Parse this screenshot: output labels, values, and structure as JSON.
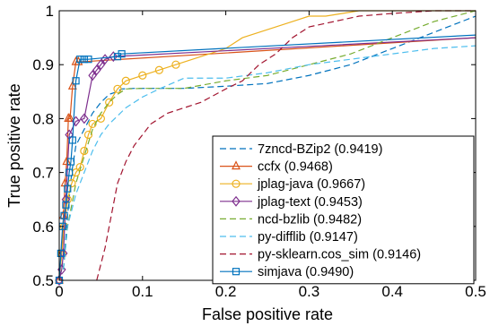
{
  "chart_data": {
    "type": "line",
    "title": "",
    "xlabel": "False positive rate",
    "ylabel": "True positive rate",
    "xlim": [
      0,
      0.5
    ],
    "ylim": [
      0.5,
      1.0
    ],
    "xticks": [
      0,
      0.1,
      0.2,
      0.3,
      0.4,
      0.5
    ],
    "yticks": [
      0.5,
      0.6,
      0.7,
      0.8,
      0.9,
      1.0
    ],
    "xtick_labels": [
      "0",
      "0.1",
      "0.2",
      "0.3",
      "0.4",
      "0.5"
    ],
    "ytick_labels": [
      "0.5",
      "0.6",
      "0.7",
      "0.8",
      "0.9",
      "1"
    ],
    "grid": false,
    "legend_position": "bottom-right",
    "series": [
      {
        "name": "7zncd-BZip2 (0.9419)",
        "color": "#0072bd",
        "dash": "dashed",
        "marker": "none",
        "x": [
          0.005,
          0.01,
          0.015,
          0.02,
          0.03,
          0.04,
          0.05,
          0.06,
          0.07,
          0.075,
          0.09,
          0.12,
          0.15,
          0.2,
          0.25,
          0.3,
          0.35,
          0.4,
          0.45,
          0.5
        ],
        "y": [
          0.52,
          0.62,
          0.7,
          0.75,
          0.78,
          0.81,
          0.83,
          0.845,
          0.85,
          0.855,
          0.856,
          0.856,
          0.856,
          0.86,
          0.865,
          0.88,
          0.9,
          0.93,
          0.96,
          0.99
        ]
      },
      {
        "name": "ccfx (0.9468)",
        "color": "#d95319",
        "dash": "solid",
        "marker": "triangle",
        "x": [
          0.0,
          0.003,
          0.005,
          0.007,
          0.009,
          0.011,
          0.013,
          0.016,
          0.02,
          0.023,
          0.5
        ],
        "y": [
          0.5,
          0.55,
          0.62,
          0.68,
          0.72,
          0.8,
          0.8,
          0.86,
          0.905,
          0.905,
          0.95
        ]
      },
      {
        "name": "jplag-java (0.9667)",
        "color": "#edb120",
        "dash": "solid",
        "marker": "circle",
        "x": [
          0.0,
          0.003,
          0.006,
          0.01,
          0.015,
          0.02,
          0.025,
          0.03,
          0.035,
          0.04,
          0.05,
          0.06,
          0.07,
          0.08,
          0.1,
          0.12,
          0.14,
          0.16,
          0.18,
          0.2,
          0.22,
          0.24,
          0.26,
          0.28,
          0.3,
          0.32,
          0.34,
          0.36,
          0.4,
          0.45,
          0.5
        ],
        "y": [
          0.5,
          0.55,
          0.6,
          0.65,
          0.68,
          0.7,
          0.71,
          0.74,
          0.77,
          0.79,
          0.8,
          0.83,
          0.855,
          0.87,
          0.88,
          0.89,
          0.9,
          0.91,
          0.92,
          0.93,
          0.95,
          0.96,
          0.97,
          0.98,
          0.99,
          0.99,
          0.995,
          1.0,
          1.0,
          1.0,
          1.0
        ]
      },
      {
        "name": "jplag-text (0.9453)",
        "color": "#7e2f8e",
        "dash": "solid",
        "marker": "diamond",
        "x": [
          0.0,
          0.003,
          0.005,
          0.008,
          0.012,
          0.02,
          0.03,
          0.04,
          0.045,
          0.05,
          0.055,
          0.065,
          0.5
        ],
        "y": [
          0.5,
          0.52,
          0.55,
          0.65,
          0.77,
          0.795,
          0.8,
          0.88,
          0.89,
          0.9,
          0.91,
          0.915,
          0.95
        ]
      },
      {
        "name": "ncd-bzlib (0.9482)",
        "color": "#77ac30",
        "dash": "dashed",
        "marker": "none",
        "x": [
          0.005,
          0.01,
          0.02,
          0.03,
          0.04,
          0.05,
          0.06,
          0.07,
          0.08,
          0.1,
          0.15,
          0.2,
          0.25,
          0.3,
          0.35,
          0.4,
          0.45,
          0.5
        ],
        "y": [
          0.52,
          0.6,
          0.68,
          0.73,
          0.78,
          0.81,
          0.83,
          0.845,
          0.855,
          0.856,
          0.856,
          0.87,
          0.88,
          0.9,
          0.92,
          0.95,
          0.98,
          1.0
        ]
      },
      {
        "name": "py-difflib (0.9147)",
        "color": "#4dbeee",
        "dash": "dashed",
        "marker": "none",
        "x": [
          0.005,
          0.01,
          0.02,
          0.03,
          0.04,
          0.05,
          0.06,
          0.08,
          0.1,
          0.12,
          0.15,
          0.2,
          0.25,
          0.3,
          0.35,
          0.4,
          0.45,
          0.5
        ],
        "y": [
          0.52,
          0.6,
          0.66,
          0.7,
          0.74,
          0.77,
          0.79,
          0.82,
          0.84,
          0.855,
          0.875,
          0.875,
          0.885,
          0.9,
          0.91,
          0.92,
          0.93,
          0.935
        ]
      },
      {
        "name": "py-sklearn.cos_sim (0.9146)",
        "color": "#a2142f",
        "dash": "dashed",
        "marker": "none",
        "x": [
          0.045,
          0.05,
          0.055,
          0.06,
          0.065,
          0.07,
          0.08,
          0.09,
          0.1,
          0.11,
          0.12,
          0.13,
          0.15,
          0.17,
          0.2,
          0.22,
          0.24,
          0.26,
          0.28,
          0.3,
          0.33,
          0.36,
          0.4,
          0.45,
          0.5
        ],
        "y": [
          0.5,
          0.53,
          0.56,
          0.6,
          0.64,
          0.68,
          0.72,
          0.75,
          0.77,
          0.79,
          0.8,
          0.81,
          0.82,
          0.83,
          0.855,
          0.87,
          0.9,
          0.92,
          0.95,
          0.97,
          0.98,
          0.99,
          0.995,
          1.0,
          1.0
        ]
      },
      {
        "name": "simjava (0.9490)",
        "color": "#0072bd",
        "dash": "solid",
        "marker": "square",
        "x": [
          0.0,
          0.002,
          0.004,
          0.006,
          0.008,
          0.01,
          0.012,
          0.014,
          0.016,
          0.02,
          0.025,
          0.03,
          0.035,
          0.07,
          0.075,
          0.5
        ],
        "y": [
          0.5,
          0.55,
          0.6,
          0.62,
          0.64,
          0.67,
          0.7,
          0.72,
          0.76,
          0.87,
          0.91,
          0.91,
          0.91,
          0.915,
          0.92,
          0.955
        ]
      }
    ]
  }
}
